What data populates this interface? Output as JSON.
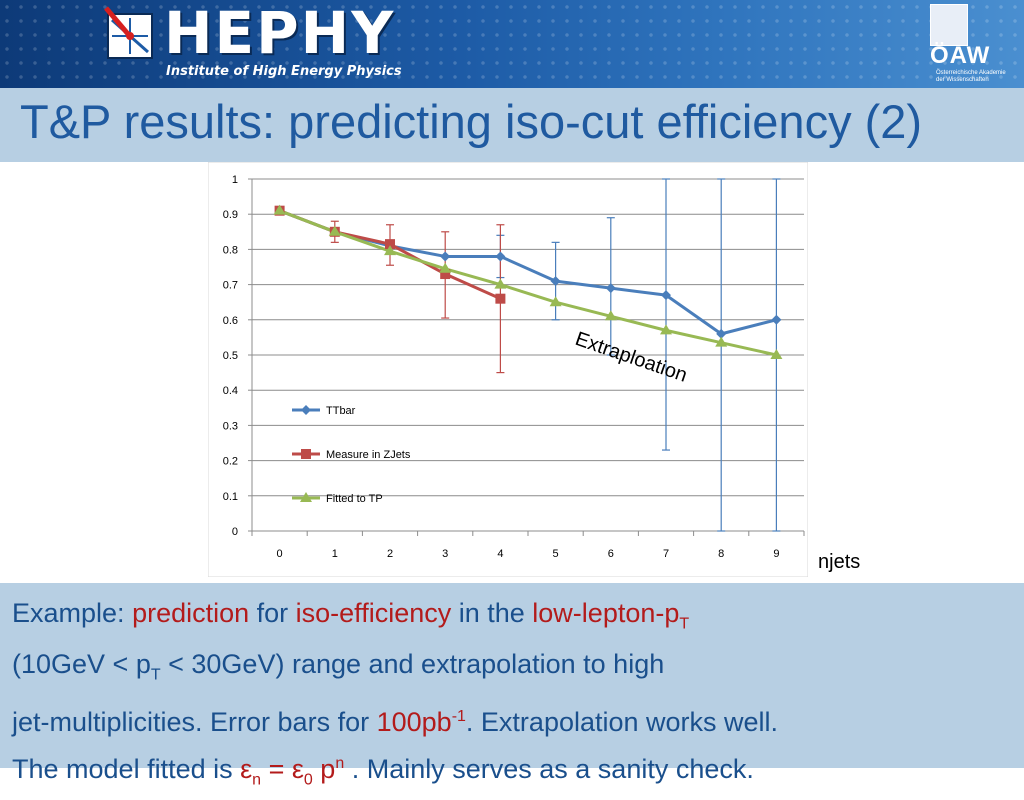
{
  "header": {
    "logo_text": "HEPHY",
    "logo_subtitle": "Institute of High Energy Physics",
    "oaw_logo": "ÖAW",
    "oaw_subtitle_line1": "Österreichische Akademie",
    "oaw_subtitle_line2": "der Wissenschaften"
  },
  "slide": {
    "title": "T&P results: predicting iso-cut efficiency (2)",
    "xaxis_note": "njets"
  },
  "caption": {
    "line1_a": "Example: ",
    "line1_b": "prediction",
    "line1_c": " for ",
    "line1_d": "iso-efficiency",
    "line1_e": " in the ",
    "line1_f": "low-lepton-p",
    "line1_f_sub": "T",
    "line2_a": "(10GeV < p",
    "line2_sub": "T",
    "line2_b": " < 30GeV) range and extrapolation to high",
    "line3_a": "jet-multiplicities. Error bars for ",
    "line3_b": "100pb",
    "line3_sup": "-1",
    "line3_c": ". Extrapolation works well.",
    "line4_a": "The model fitted is ",
    "line4_eps": "ε",
    "line4_n": "n",
    "line4_eq": " = ε",
    "line4_0": "0",
    "line4_p": " p",
    "line4_sup": "n",
    "line4_b": " . Mainly serves as a sanity check."
  },
  "colors": {
    "ttbar": "#4a7ebb",
    "zjets": "#be4b48",
    "fitted": "#98b954",
    "title": "#1f5aa0",
    "caption": "#1a4f8c",
    "highlight": "#b31b1b",
    "band": "#b7cfe3"
  },
  "chart_data": {
    "type": "line",
    "x": [
      0,
      1,
      2,
      3,
      4,
      5,
      6,
      7,
      8,
      9
    ],
    "xticks": [
      "0",
      "1",
      "2",
      "3",
      "4",
      "5",
      "6",
      "7",
      "8",
      "9"
    ],
    "ylim": [
      0,
      1
    ],
    "yticks": [
      "0",
      "0.1",
      "0.2",
      "0.3",
      "0.4",
      "0.5",
      "0.6",
      "0.7",
      "0.8",
      "0.9",
      "1"
    ],
    "grid": "horizontal",
    "legend_position": "left",
    "annotation": "Extraploation",
    "series": [
      {
        "name": "TTbar",
        "marker": "diamond",
        "x": [
          0,
          1,
          2,
          3,
          4,
          5,
          6,
          7,
          8,
          9
        ],
        "y": [
          0.91,
          0.85,
          0.81,
          0.78,
          0.78,
          0.71,
          0.69,
          0.67,
          0.56,
          0.6
        ],
        "err_low": [
          null,
          null,
          null,
          null,
          0.06,
          0.11,
          0.19,
          0.44,
          0.56,
          0.6
        ],
        "err_high": [
          null,
          null,
          null,
          null,
          0.06,
          0.11,
          0.2,
          0.33,
          0.44,
          0.4
        ]
      },
      {
        "name": "Measure in ZJets",
        "marker": "square",
        "x": [
          0,
          1,
          2,
          3,
          4
        ],
        "y": [
          0.91,
          0.85,
          0.815,
          0.73,
          0.66
        ],
        "err_low": [
          null,
          0.03,
          0.06,
          0.125,
          0.21
        ],
        "err_high": [
          null,
          0.03,
          0.055,
          0.12,
          0.21
        ]
      },
      {
        "name": "Fitted to TP",
        "marker": "triangle",
        "x": [
          0,
          1,
          2,
          3,
          4,
          5,
          6,
          7,
          8,
          9
        ],
        "y": [
          0.91,
          0.85,
          0.795,
          0.745,
          0.7,
          0.65,
          0.61,
          0.57,
          0.535,
          0.5
        ]
      }
    ]
  }
}
